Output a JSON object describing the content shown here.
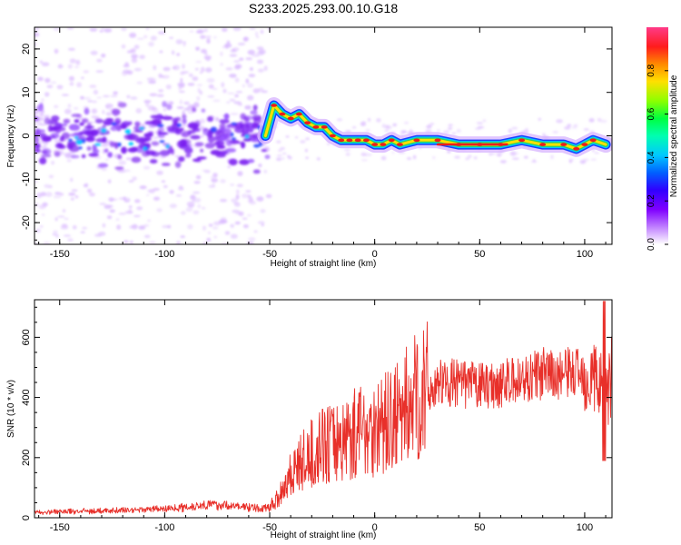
{
  "title": "S233.2025.293.00.10.G18",
  "chart_data": [
    {
      "type": "heatmap",
      "xlabel": "Height of straight line (km)",
      "ylabel": "Frequency (Hz)",
      "xlim": [
        -162,
        113
      ],
      "ylim": [
        -25,
        25
      ],
      "xticks": [
        -150,
        -100,
        -50,
        0,
        50,
        100
      ],
      "yticks": [
        -20,
        -10,
        0,
        10,
        20
      ],
      "colorbar": {
        "label": "Normalized spectral amplitude",
        "range": [
          0,
          1
        ],
        "ticks": [
          0.0,
          0.2,
          0.4,
          0.6,
          0.8
        ]
      },
      "ridge": {
        "x": [
          -52,
          -48,
          -44,
          -40,
          -36,
          -32,
          -28,
          -24,
          -20,
          -16,
          -12,
          -8,
          -4,
          0,
          4,
          8,
          12,
          20,
          30,
          40,
          50,
          60,
          70,
          80,
          90,
          96,
          100,
          104,
          110
        ],
        "y": [
          0,
          7,
          5,
          4,
          5,
          3,
          2,
          2,
          0,
          -1,
          -1,
          -1,
          -1,
          -2,
          -2,
          -1,
          -2,
          -1,
          -1,
          -2,
          -2,
          -2,
          -1,
          -2,
          -2,
          -3,
          -2,
          -1,
          -2
        ]
      }
    },
    {
      "type": "line",
      "xlabel": "Height of straight line (km)",
      "ylabel": "SNR (10 * v/v)",
      "xlim": [
        -162,
        113
      ],
      "ylim": [
        0,
        725
      ],
      "xticks": [
        -150,
        -100,
        -50,
        0,
        50,
        100
      ],
      "yticks": [
        0,
        200,
        400,
        600
      ],
      "series": [
        {
          "name": "SNR",
          "color": "#e8302a",
          "x": [
            -162,
            -150,
            -140,
            -130,
            -120,
            -110,
            -100,
            -90,
            -80,
            -70,
            -60,
            -55,
            -50,
            -45,
            -40,
            -35,
            -30,
            -25,
            -20,
            -15,
            -10,
            -5,
            0,
            5,
            10,
            15,
            20,
            25,
            30,
            35,
            40,
            50,
            60,
            70,
            75,
            80,
            85,
            90,
            95,
            100,
            105,
            108,
            110,
            113
          ],
          "y": [
            18,
            20,
            22,
            22,
            25,
            28,
            30,
            35,
            45,
            40,
            35,
            30,
            35,
            80,
            150,
            180,
            210,
            240,
            250,
            260,
            280,
            300,
            300,
            310,
            330,
            370,
            400,
            420,
            445,
            450,
            445,
            440,
            445,
            460,
            470,
            480,
            470,
            480,
            485,
            480,
            470,
            430,
            420,
            470
          ]
        }
      ]
    }
  ],
  "colors": {
    "ridge_core": "#ee1b1b",
    "ridge_mid": "#2ed05a",
    "ridge_outer": "#1a40ff",
    "scatter_dark": "#7a20f0",
    "scatter_light": "#d9b8ff",
    "axis": "#000000",
    "line": "#e8302a"
  },
  "colors_list": [
    "#ff3a88",
    "#ff1c1c",
    "#ff8a00",
    "#ffe000",
    "#8cff00",
    "#00ff40",
    "#00ffb0",
    "#00c8ff",
    "#0060ff",
    "#3000ff",
    "#8000ff",
    "#c080ff",
    "#ffffff"
  ]
}
